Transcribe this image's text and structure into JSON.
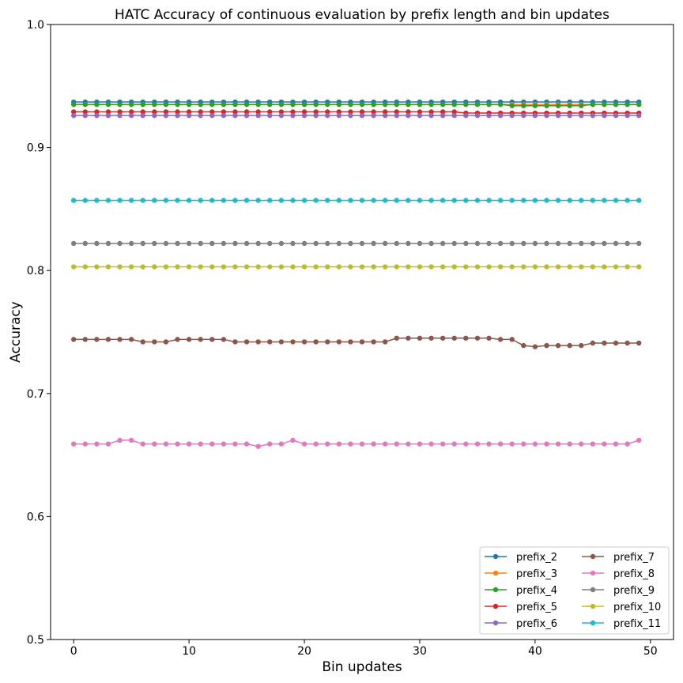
{
  "chart_data": {
    "type": "line",
    "title": "HATC Accuracy of continuous evaluation by prefix length and bin updates",
    "xlabel": "Bin updates",
    "ylabel": "Accuracy",
    "xlim": [
      -2,
      52
    ],
    "ylim": [
      0.5,
      1.0
    ],
    "xticks": [
      0,
      10,
      20,
      30,
      40,
      50
    ],
    "yticks": [
      0.5,
      0.6,
      0.7,
      0.8,
      0.9,
      1.0
    ],
    "grid": false,
    "legend_position": "lower-right",
    "legend_columns": 2,
    "x": [
      0,
      1,
      2,
      3,
      4,
      5,
      6,
      7,
      8,
      9,
      10,
      11,
      12,
      13,
      14,
      15,
      16,
      17,
      18,
      19,
      20,
      21,
      22,
      23,
      24,
      25,
      26,
      27,
      28,
      29,
      30,
      31,
      32,
      33,
      34,
      35,
      36,
      37,
      38,
      39,
      40,
      41,
      42,
      43,
      44,
      45,
      46,
      47,
      48,
      49
    ],
    "series": [
      {
        "name": "prefix_2",
        "color": "#1f77b4",
        "values": [
          0.937,
          0.937,
          0.937,
          0.937,
          0.937,
          0.937,
          0.937,
          0.937,
          0.937,
          0.937,
          0.937,
          0.937,
          0.937,
          0.937,
          0.937,
          0.937,
          0.937,
          0.937,
          0.937,
          0.937,
          0.937,
          0.937,
          0.937,
          0.937,
          0.937,
          0.937,
          0.937,
          0.937,
          0.937,
          0.937,
          0.937,
          0.937,
          0.937,
          0.937,
          0.937,
          0.937,
          0.937,
          0.937,
          0.937,
          0.937,
          0.937,
          0.937,
          0.937,
          0.937,
          0.937,
          0.937,
          0.937,
          0.937,
          0.937,
          0.937
        ]
      },
      {
        "name": "prefix_3",
        "color": "#ff7f0e",
        "values": [
          0.935,
          0.935,
          0.935,
          0.935,
          0.935,
          0.935,
          0.935,
          0.935,
          0.935,
          0.935,
          0.935,
          0.935,
          0.935,
          0.935,
          0.935,
          0.935,
          0.935,
          0.935,
          0.935,
          0.935,
          0.935,
          0.935,
          0.935,
          0.935,
          0.935,
          0.935,
          0.935,
          0.935,
          0.935,
          0.935,
          0.935,
          0.935,
          0.935,
          0.935,
          0.935,
          0.935,
          0.935,
          0.935,
          0.935,
          0.935,
          0.935,
          0.935,
          0.935,
          0.935,
          0.935,
          0.935,
          0.935,
          0.935,
          0.935,
          0.935
        ]
      },
      {
        "name": "prefix_4",
        "color": "#2ca02c",
        "values": [
          0.935,
          0.935,
          0.935,
          0.935,
          0.935,
          0.935,
          0.935,
          0.935,
          0.935,
          0.935,
          0.935,
          0.935,
          0.935,
          0.935,
          0.935,
          0.935,
          0.935,
          0.935,
          0.935,
          0.935,
          0.935,
          0.935,
          0.935,
          0.935,
          0.935,
          0.935,
          0.935,
          0.935,
          0.935,
          0.935,
          0.935,
          0.935,
          0.935,
          0.935,
          0.935,
          0.935,
          0.935,
          0.935,
          0.934,
          0.934,
          0.934,
          0.934,
          0.934,
          0.934,
          0.934,
          0.935,
          0.935,
          0.935,
          0.935,
          0.935
        ]
      },
      {
        "name": "prefix_5",
        "color": "#d62728",
        "values": [
          0.929,
          0.929,
          0.929,
          0.929,
          0.929,
          0.929,
          0.929,
          0.929,
          0.929,
          0.929,
          0.929,
          0.929,
          0.929,
          0.929,
          0.929,
          0.929,
          0.929,
          0.929,
          0.929,
          0.929,
          0.929,
          0.929,
          0.929,
          0.929,
          0.929,
          0.929,
          0.929,
          0.929,
          0.929,
          0.929,
          0.929,
          0.929,
          0.929,
          0.929,
          0.928,
          0.928,
          0.928,
          0.928,
          0.928,
          0.928,
          0.928,
          0.928,
          0.928,
          0.928,
          0.928,
          0.928,
          0.928,
          0.928,
          0.928,
          0.928
        ]
      },
      {
        "name": "prefix_6",
        "color": "#9467bd",
        "values": [
          0.926,
          0.926,
          0.926,
          0.926,
          0.926,
          0.926,
          0.926,
          0.926,
          0.926,
          0.926,
          0.926,
          0.926,
          0.926,
          0.926,
          0.926,
          0.926,
          0.926,
          0.926,
          0.926,
          0.926,
          0.926,
          0.926,
          0.926,
          0.926,
          0.926,
          0.926,
          0.926,
          0.926,
          0.926,
          0.926,
          0.926,
          0.926,
          0.926,
          0.926,
          0.926,
          0.926,
          0.926,
          0.926,
          0.926,
          0.926,
          0.926,
          0.926,
          0.926,
          0.926,
          0.926,
          0.926,
          0.926,
          0.926,
          0.926,
          0.926
        ]
      },
      {
        "name": "prefix_7",
        "color": "#8c564b",
        "values": [
          0.744,
          0.744,
          0.744,
          0.744,
          0.744,
          0.744,
          0.742,
          0.742,
          0.742,
          0.744,
          0.744,
          0.744,
          0.744,
          0.744,
          0.742,
          0.742,
          0.742,
          0.742,
          0.742,
          0.742,
          0.742,
          0.742,
          0.742,
          0.742,
          0.742,
          0.742,
          0.742,
          0.742,
          0.745,
          0.745,
          0.745,
          0.745,
          0.745,
          0.745,
          0.745,
          0.745,
          0.745,
          0.744,
          0.744,
          0.739,
          0.738,
          0.739,
          0.739,
          0.739,
          0.739,
          0.741,
          0.741,
          0.741,
          0.741,
          0.741
        ]
      },
      {
        "name": "prefix_8",
        "color": "#e377c2",
        "values": [
          0.659,
          0.659,
          0.659,
          0.659,
          0.662,
          0.662,
          0.659,
          0.659,
          0.659,
          0.659,
          0.659,
          0.659,
          0.659,
          0.659,
          0.659,
          0.659,
          0.657,
          0.659,
          0.659,
          0.662,
          0.659,
          0.659,
          0.659,
          0.659,
          0.659,
          0.659,
          0.659,
          0.659,
          0.659,
          0.659,
          0.659,
          0.659,
          0.659,
          0.659,
          0.659,
          0.659,
          0.659,
          0.659,
          0.659,
          0.659,
          0.659,
          0.659,
          0.659,
          0.659,
          0.659,
          0.659,
          0.659,
          0.659,
          0.659,
          0.662
        ]
      },
      {
        "name": "prefix_9",
        "color": "#7f7f7f",
        "values": [
          0.822,
          0.822,
          0.822,
          0.822,
          0.822,
          0.822,
          0.822,
          0.822,
          0.822,
          0.822,
          0.822,
          0.822,
          0.822,
          0.822,
          0.822,
          0.822,
          0.822,
          0.822,
          0.822,
          0.822,
          0.822,
          0.822,
          0.822,
          0.822,
          0.822,
          0.822,
          0.822,
          0.822,
          0.822,
          0.822,
          0.822,
          0.822,
          0.822,
          0.822,
          0.822,
          0.822,
          0.822,
          0.822,
          0.822,
          0.822,
          0.822,
          0.822,
          0.822,
          0.822,
          0.822,
          0.822,
          0.822,
          0.822,
          0.822,
          0.822
        ]
      },
      {
        "name": "prefix_10",
        "color": "#bcbd22",
        "values": [
          0.803,
          0.803,
          0.803,
          0.803,
          0.803,
          0.803,
          0.803,
          0.803,
          0.803,
          0.803,
          0.803,
          0.803,
          0.803,
          0.803,
          0.803,
          0.803,
          0.803,
          0.803,
          0.803,
          0.803,
          0.803,
          0.803,
          0.803,
          0.803,
          0.803,
          0.803,
          0.803,
          0.803,
          0.803,
          0.803,
          0.803,
          0.803,
          0.803,
          0.803,
          0.803,
          0.803,
          0.803,
          0.803,
          0.803,
          0.803,
          0.803,
          0.803,
          0.803,
          0.803,
          0.803,
          0.803,
          0.803,
          0.803,
          0.803,
          0.803
        ]
      },
      {
        "name": "prefix_11",
        "color": "#17becf",
        "values": [
          0.857,
          0.857,
          0.857,
          0.857,
          0.857,
          0.857,
          0.857,
          0.857,
          0.857,
          0.857,
          0.857,
          0.857,
          0.857,
          0.857,
          0.857,
          0.857,
          0.857,
          0.857,
          0.857,
          0.857,
          0.857,
          0.857,
          0.857,
          0.857,
          0.857,
          0.857,
          0.857,
          0.857,
          0.857,
          0.857,
          0.857,
          0.857,
          0.857,
          0.857,
          0.857,
          0.857,
          0.857,
          0.857,
          0.857,
          0.857,
          0.857,
          0.857,
          0.857,
          0.857,
          0.857,
          0.857,
          0.857,
          0.857,
          0.857,
          0.857
        ]
      }
    ]
  }
}
